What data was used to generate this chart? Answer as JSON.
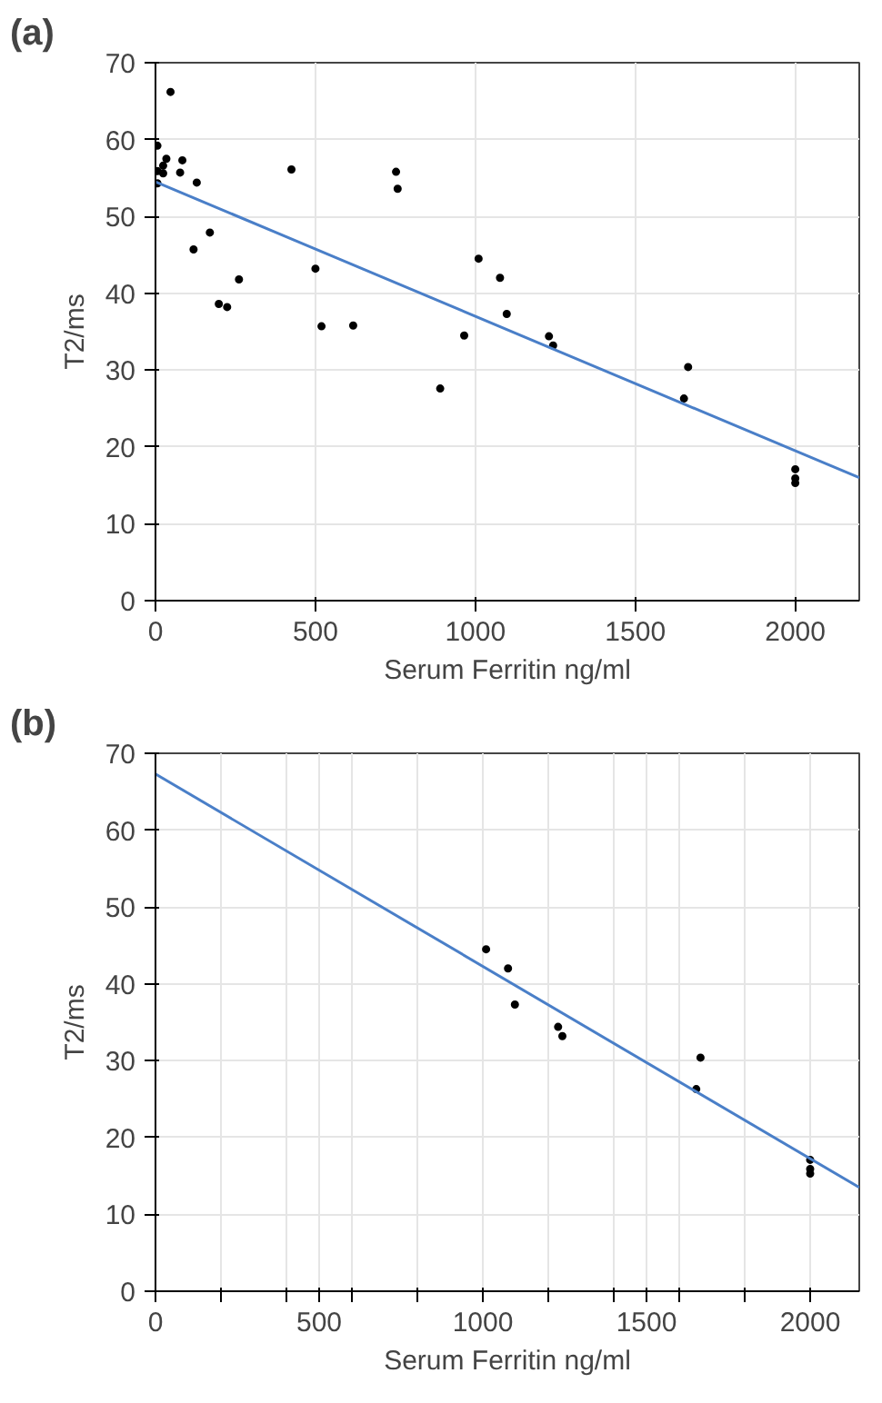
{
  "chart_data": [
    {
      "type": "scatter",
      "annotations": [
        "(a)"
      ],
      "xlabel": "Serum Ferritin ng/ml",
      "ylabel": "T2/ms",
      "xlim": [
        0,
        2200
      ],
      "ylim": [
        0,
        70
      ],
      "xticks": [
        0,
        500,
        1000,
        1500,
        2000
      ],
      "yticks": [
        0,
        10,
        20,
        30,
        40,
        50,
        60,
        70
      ],
      "grid": true,
      "marker": "circle",
      "series": [
        {
          "color": "#000000",
          "x": [
            6,
            47,
            6,
            6,
            24,
            24,
            34,
            77,
            84,
            129,
            170,
            119,
            198,
            224,
            261,
            425,
            500,
            519,
            618,
            752,
            757,
            890,
            965,
            1010,
            1077,
            1098,
            1230,
            1243,
            1652,
            1665,
            2000,
            2000,
            2000
          ],
          "values": [
            59.2,
            66.2,
            55.9,
            54.3,
            56.6,
            55.6,
            57.5,
            55.7,
            57.3,
            54.4,
            47.9,
            45.7,
            38.6,
            38.2,
            41.8,
            56.1,
            43.2,
            35.7,
            35.8,
            55.8,
            53.6,
            27.6,
            34.5,
            44.5,
            42.0,
            37.3,
            34.4,
            33.2,
            26.3,
            30.4,
            17.1,
            15.9,
            15.3
          ]
        },
        {
          "type": "line",
          "marker": "none",
          "color": "#4a7fc8",
          "x": [
            0,
            2200
          ],
          "values": [
            54.5,
            16
          ]
        }
      ]
    },
    {
      "type": "scatter",
      "annotations": [
        "(b)"
      ],
      "xlabel": "Serum Ferritin ng/ml",
      "ylabel": "T2/ms",
      "xlim": [
        0,
        2150
      ],
      "ylim": [
        0,
        70
      ],
      "xticks": [
        0,
        {
          "value": 200,
          "label": null
        },
        {
          "value": 400,
          "label": null
        },
        500,
        {
          "value": 600,
          "label": null
        },
        {
          "value": 800,
          "label": null
        },
        1000,
        {
          "value": 1200,
          "label": null
        },
        {
          "value": 1400,
          "label": null
        },
        1500,
        {
          "value": 1600,
          "label": null
        },
        {
          "value": 1800,
          "label": null
        },
        2000
      ],
      "yticks": [
        0,
        10,
        20,
        30,
        40,
        50,
        60,
        70
      ],
      "grid": true,
      "marker": "circle",
      "series": [
        {
          "color": "#000000",
          "x": [
            1010,
            1077,
            1098,
            1230,
            1243,
            1652,
            1665,
            2000,
            2000,
            2000
          ],
          "values": [
            44.5,
            42.0,
            37.3,
            34.4,
            33.2,
            26.3,
            30.4,
            17.1,
            15.9,
            15.3
          ]
        },
        {
          "type": "line",
          "marker": "none",
          "color": "#4a7fc8",
          "x": [
            0,
            2150
          ],
          "values": [
            67.3,
            13.5
          ]
        }
      ]
    }
  ]
}
